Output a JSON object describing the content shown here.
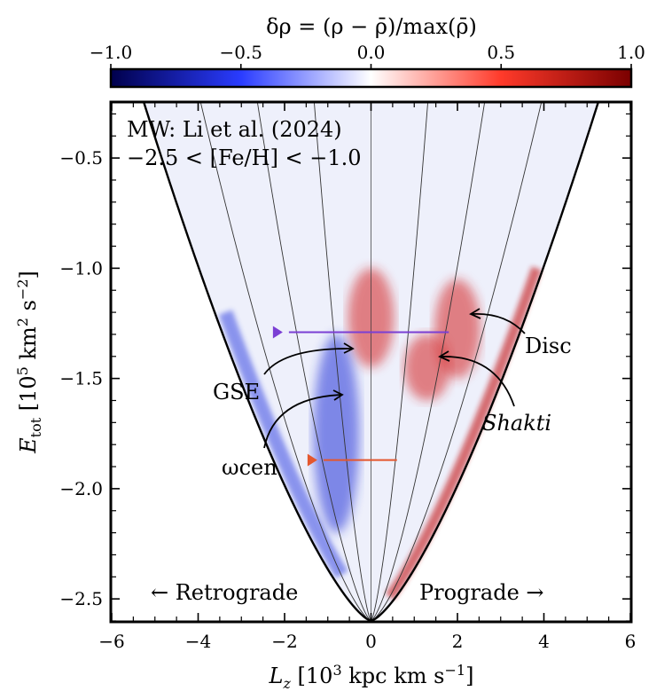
{
  "chart_data": {
    "type": "heatmap",
    "colorbar": {
      "label": "δρ = (ρ − ρ̄)/max(ρ̄)",
      "ticks": [
        -1.0,
        -0.5,
        0.0,
        0.5,
        1.0
      ],
      "tick_labels": [
        "−1.0",
        "−0.5",
        "0.0",
        "0.5",
        "1.0"
      ],
      "range": [
        -1.0,
        1.0
      ],
      "colormap": "seismic",
      "colors": {
        "neg": "#00008b",
        "mid": "#ffffff",
        "pos": "#7f0000"
      }
    },
    "xlabel": "L_z [10^3 kpc km s^-1]",
    "ylabel": "E_tot [10^5 km^2 s^-2]",
    "xlim": [
      -6,
      6
    ],
    "ylim": [
      -2.6,
      -0.25
    ],
    "xticks": [
      -6,
      -4,
      -2,
      0,
      2,
      4,
      6
    ],
    "xtick_labels": [
      "−6",
      "−4",
      "−2",
      "0",
      "2",
      "4",
      "6"
    ],
    "yticks": [
      -2.5,
      -2.0,
      -1.5,
      -1.0,
      -0.5
    ],
    "ytick_labels": [
      "−2.5",
      "−2.0",
      "−1.5",
      "−1.0",
      "−0.5"
    ],
    "title_lines": [
      "MW: Li et al. (2024)",
      "−2.5 < [Fe/H] < −1.0"
    ],
    "annotations": [
      {
        "label": "Disc",
        "italic": false,
        "target": [
          2.2,
          -1.22
        ]
      },
      {
        "label": "Shakti",
        "italic": true,
        "target": [
          1.6,
          -1.4
        ]
      },
      {
        "label": "GSE",
        "italic": false,
        "target": [
          -0.4,
          -1.37
        ]
      },
      {
        "label": "ωcen",
        "italic": false,
        "target": [
          -0.6,
          -1.57
        ]
      }
    ],
    "direction_labels": {
      "left": "← Retrograde",
      "right": "Prograde →"
    },
    "horizontal_markers": [
      {
        "E": -1.29,
        "x_from": -1.9,
        "x_to": 1.8,
        "color": "#7b3fd4"
      },
      {
        "E": -1.87,
        "x_from": -1.1,
        "x_to": 0.6,
        "color": "#e4572e"
      }
    ],
    "features": [
      {
        "name": "Disc",
        "sign": 1,
        "Lz_center": 2.0,
        "E_range": [
          -1.5,
          -1.05
        ]
      },
      {
        "name": "Shakti",
        "sign": 1,
        "Lz_center": 1.3,
        "E_range": [
          -1.6,
          -1.3
        ]
      },
      {
        "name": "GSE",
        "sign": 1,
        "Lz_center": 0.0,
        "E_range": [
          -1.45,
          -1.0
        ]
      },
      {
        "name": "retrograde-depletion",
        "sign": -1,
        "Lz_center": -0.8,
        "E_range": [
          -2.2,
          -1.3
        ]
      }
    ]
  }
}
